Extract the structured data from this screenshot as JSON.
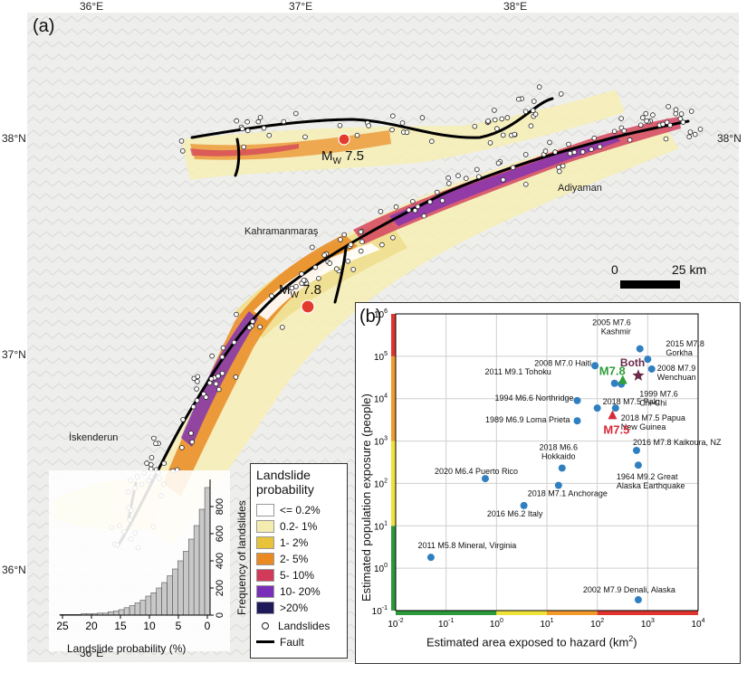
{
  "panel_a": {
    "label": "(a)",
    "lon_ticks": [
      "36°E",
      "37°E",
      "38°E"
    ],
    "lat_ticks": [
      "38°N",
      "37°N",
      "36°N"
    ],
    "places": [
      "Adiyaman",
      "Kahramanmaraş",
      "İskenderun"
    ],
    "mw_upper": {
      "prefix": "M",
      "sub": "W",
      "value": " 7.5"
    },
    "mw_lower": {
      "prefix": "M",
      "sub": "W",
      "value": " 7.8"
    },
    "scalebar": {
      "left": "0",
      "right": "25 km"
    },
    "legend": {
      "title_line1": "Landslide",
      "title_line2": "probability",
      "items": [
        {
          "label": "<= 0.2%",
          "color": "#ffffff"
        },
        {
          "label": "0.2- 1%",
          "color": "#f5ecb0"
        },
        {
          "label": "1- 2%",
          "color": "#e8c33a"
        },
        {
          "label": "2- 5%",
          "color": "#e98a22"
        },
        {
          "label": "5- 10%",
          "color": "#d23a5a"
        },
        {
          "label": "10- 20%",
          "color": "#7a2fb8"
        },
        {
          "label": ">20%",
          "color": "#1f1a5a"
        }
      ],
      "landslides_label": "Landslides",
      "fault_label": "Fault"
    },
    "histogram": {
      "xlabel": "Landslide probability (%)",
      "ylabel": "Frequency of landslides",
      "x_ticks": [
        "25",
        "20",
        "15",
        "10",
        "5",
        "0"
      ],
      "y_ticks": [
        "0",
        "200",
        "400",
        "600",
        "800"
      ]
    }
  },
  "panel_b": {
    "label": "(b)",
    "xlabel": "Estimated area exposed to hazard (km",
    "xlabel_sup": "2",
    "xlabel_end": ")",
    "ylabel": "Estimated population exposure (people)",
    "x_tick_labels": [
      "10-2",
      "10-1",
      "100",
      "101",
      "102",
      "103",
      "104"
    ],
    "y_tick_labels": [
      "10-1",
      "100",
      "101",
      "102",
      "103",
      "104",
      "105",
      "106"
    ],
    "highlights": {
      "m78": "M7.8",
      "m75": "M7.5",
      "both": "Both"
    }
  },
  "chart_data": {
    "type": "scatter",
    "xlabel": "Estimated area exposed to hazard (km2)",
    "ylabel": "Estimated population exposure (people)",
    "xscale": "log",
    "yscale": "log",
    "xlim": [
      0.01,
      10000
    ],
    "ylim": [
      0.1,
      1000000
    ],
    "grid": true,
    "points": [
      {
        "label": "2005 M7.6 Kashmir",
        "x": 700,
        "y": 150000
      },
      {
        "label": "2015 M7.8 Gorkha",
        "x": 1000,
        "y": 85000
      },
      {
        "label": "2008 M7.0 Haiti",
        "x": 90,
        "y": 60000
      },
      {
        "label": "2008 M7.9 Wenchuan",
        "x": 1200,
        "y": 50000
      },
      {
        "label": "2011 M9.1 Tohoku",
        "x": 220,
        "y": 23000
      },
      {
        "label": "1999 M7.6 Chi-Chi",
        "x": 300,
        "y": 22000
      },
      {
        "label": "1994 M6.6 Northridge",
        "x": 40,
        "y": 9000
      },
      {
        "label": "2018 M7.5 Palu",
        "x": 100,
        "y": 6000
      },
      {
        "label": "2018 M7.5 Papua New Guinea",
        "x": 230,
        "y": 6000
      },
      {
        "label": "1989 M6.9 Loma Prieta",
        "x": 40,
        "y": 3000
      },
      {
        "label": "2016 M7.8 Kaikoura, NZ",
        "x": 600,
        "y": 600
      },
      {
        "label": "2018 M6.6 Hokkaido",
        "x": 20,
        "y": 230
      },
      {
        "label": "1964 M9.2 Great Alaska Earthquake",
        "x": 650,
        "y": 270
      },
      {
        "label": "2020 M6.4 Puerto Rico",
        "x": 0.6,
        "y": 130
      },
      {
        "label": "2018 M7.1 Anchorage",
        "x": 17,
        "y": 90
      },
      {
        "label": "2016 M6.2 Italy",
        "x": 3.5,
        "y": 30
      },
      {
        "label": "2011 M5.8 Mineral, Virginia",
        "x": 0.05,
        "y": 1.8
      },
      {
        "label": "2002 M7.9 Denali, Alaska",
        "x": 650,
        "y": 0.18
      }
    ],
    "highlights": [
      {
        "label": "M7.8",
        "x": 320,
        "y": 27000,
        "color": "#2e9e3a",
        "marker": "triangle"
      },
      {
        "label": "M7.5",
        "x": 200,
        "y": 4000,
        "color": "#d62a3a",
        "marker": "triangle"
      },
      {
        "label": "Both",
        "x": 650,
        "y": 35000,
        "color": "#6a2a4a",
        "marker": "star"
      }
    ],
    "histogram_inset": {
      "type": "bar",
      "xlabel": "Landslide probability (%)",
      "ylabel": "Frequency of landslides",
      "bins_high_to_low_percent": [
        27.5,
        26.5,
        25.5,
        24.5,
        23.5,
        22.5,
        21.5,
        20.5,
        19.5,
        18.5,
        17.5,
        16.5,
        15.5,
        14.5,
        13.5,
        12.5,
        11.5,
        10.5,
        9.5,
        8.5,
        7.5,
        6.5,
        5.5,
        4.5,
        3.5,
        2.5,
        1.5,
        0.5
      ],
      "values": [
        5,
        5,
        5,
        5,
        10,
        10,
        10,
        15,
        15,
        25,
        30,
        40,
        55,
        70,
        90,
        110,
        140,
        165,
        200,
        240,
        290,
        340,
        400,
        470,
        560,
        660,
        780,
        940
      ],
      "ylim": [
        0,
        1000
      ]
    }
  },
  "colors": {
    "fault": "#000000",
    "epicenter": "#e23b2e",
    "map_bg": "#f0f0ee"
  }
}
